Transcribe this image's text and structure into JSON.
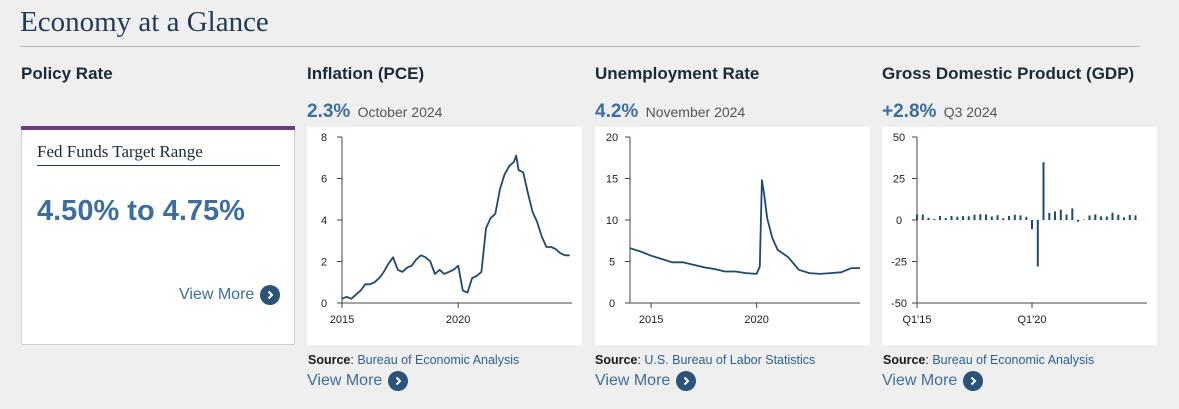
{
  "page": {
    "title": "Economy at a Glance"
  },
  "policy": {
    "title": "Policy Rate",
    "card_label": "Fed Funds Target Range",
    "rate": "4.50% to 4.75%",
    "view_more": "View More",
    "accent_color": "#6a3f7e"
  },
  "panels": [
    {
      "title": "Inflation (PCE)",
      "value": "2.3%",
      "date": "October 2024",
      "source_label": "Source",
      "source_text": "Bureau of Economic Analysis",
      "view_more": "View More"
    },
    {
      "title": "Unemployment Rate",
      "value": "4.2%",
      "date": "November 2024",
      "source_label": "Source",
      "source_text": "U.S. Bureau of Labor Statistics",
      "view_more": "View More"
    },
    {
      "title": "Gross Domestic Product (GDP)",
      "value": "+2.8%",
      "date": "Q3 2024",
      "source_label": "Source",
      "source_text": "Bureau of Economic Analysis",
      "view_more": "View More"
    }
  ],
  "chart_data": [
    {
      "type": "line",
      "xlim": [
        2015,
        2024.9
      ],
      "ylim": [
        0,
        8
      ],
      "yticks": [
        0,
        2,
        4,
        6,
        8
      ],
      "xticks": [
        2015,
        2020
      ],
      "line_color": "#1e4a72",
      "x": [
        2015.0,
        2015.2,
        2015.4,
        2015.6,
        2015.8,
        2016.0,
        2016.2,
        2016.4,
        2016.6,
        2016.8,
        2017.0,
        2017.2,
        2017.4,
        2017.6,
        2017.8,
        2018.0,
        2018.2,
        2018.4,
        2018.6,
        2018.8,
        2019.0,
        2019.2,
        2019.4,
        2019.6,
        2019.8,
        2020.0,
        2020.2,
        2020.4,
        2020.6,
        2020.8,
        2021.0,
        2021.2,
        2021.4,
        2021.6,
        2021.8,
        2022.0,
        2022.2,
        2022.4,
        2022.5,
        2022.6,
        2022.8,
        2023.0,
        2023.2,
        2023.4,
        2023.6,
        2023.8,
        2024.0,
        2024.2,
        2024.4,
        2024.6,
        2024.8
      ],
      "y": [
        0.2,
        0.3,
        0.2,
        0.4,
        0.6,
        0.9,
        0.9,
        1.0,
        1.2,
        1.5,
        1.9,
        2.2,
        1.6,
        1.5,
        1.7,
        1.8,
        2.1,
        2.3,
        2.2,
        2.0,
        1.4,
        1.6,
        1.4,
        1.5,
        1.6,
        1.8,
        0.6,
        0.5,
        1.2,
        1.3,
        1.5,
        3.6,
        4.1,
        4.3,
        5.5,
        6.2,
        6.6,
        6.8,
        7.1,
        6.4,
        6.3,
        5.3,
        4.4,
        3.9,
        3.2,
        2.7,
        2.7,
        2.6,
        2.4,
        2.3,
        2.3
      ]
    },
    {
      "type": "line",
      "xlim": [
        2014,
        2024.9
      ],
      "ylim": [
        0,
        20
      ],
      "yticks": [
        0,
        5,
        10,
        15,
        20
      ],
      "xticks": [
        2015,
        2020
      ],
      "line_color": "#1e4a72",
      "x": [
        2014.0,
        2014.5,
        2015.0,
        2015.5,
        2016.0,
        2016.5,
        2017.0,
        2017.5,
        2018.0,
        2018.5,
        2019.0,
        2019.5,
        2020.0,
        2020.15,
        2020.25,
        2020.35,
        2020.5,
        2020.75,
        2021.0,
        2021.5,
        2022.0,
        2022.5,
        2023.0,
        2023.5,
        2024.0,
        2024.5,
        2024.9
      ],
      "y": [
        6.6,
        6.2,
        5.7,
        5.3,
        4.9,
        4.9,
        4.6,
        4.3,
        4.1,
        3.8,
        3.8,
        3.6,
        3.5,
        4.4,
        14.8,
        13.2,
        10.2,
        7.8,
        6.4,
        5.5,
        4.0,
        3.6,
        3.5,
        3.6,
        3.7,
        4.2,
        4.2
      ]
    },
    {
      "type": "bar",
      "xlim": [
        2015.0,
        2025.0
      ],
      "ylim": [
        -50,
        50
      ],
      "yticks": [
        -50,
        -25,
        0,
        25,
        50
      ],
      "xticks": [
        2015,
        2020
      ],
      "xtick_labels": [
        "Q1'15",
        "Q1'20"
      ],
      "bar_color": "#1e4a72",
      "x": [
        2015.0,
        2015.25,
        2015.5,
        2015.75,
        2016.0,
        2016.25,
        2016.5,
        2016.75,
        2017.0,
        2017.25,
        2017.5,
        2017.75,
        2018.0,
        2018.25,
        2018.5,
        2018.75,
        2019.0,
        2019.25,
        2019.5,
        2019.75,
        2020.0,
        2020.25,
        2020.5,
        2020.75,
        2021.0,
        2021.25,
        2021.5,
        2021.75,
        2022.0,
        2022.25,
        2022.5,
        2022.75,
        2023.0,
        2023.25,
        2023.5,
        2023.75,
        2024.0,
        2024.25,
        2024.5
      ],
      "values": [
        3.3,
        3.3,
        1.3,
        0.6,
        2.4,
        1.2,
        2.4,
        2.0,
        2.3,
        2.2,
        3.2,
        3.5,
        3.3,
        2.1,
        2.9,
        1.1,
        2.4,
        3.2,
        2.8,
        1.9,
        -5.5,
        -28.0,
        34.8,
        4.2,
        5.2,
        6.2,
        3.3,
        7.0,
        -1.0,
        0.3,
        2.7,
        3.4,
        2.2,
        2.1,
        4.4,
        3.2,
        1.6,
        3.0,
        2.8
      ]
    }
  ]
}
